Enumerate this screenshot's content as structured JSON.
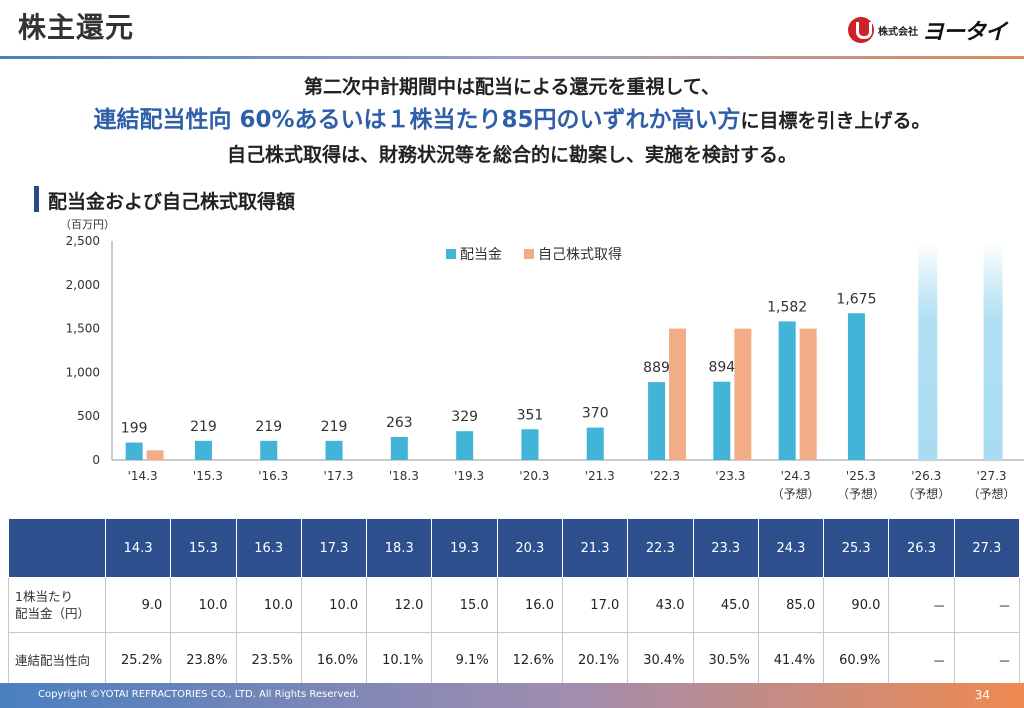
{
  "header": {
    "title": "株主還元",
    "logo_small": "株式会社",
    "logo_big": "ヨータイ"
  },
  "headline": {
    "line1": "第二次中計期間中は配当による還元を重視して、",
    "line2_emphasis": "連結配当性向 60%あるいは１株当たり85円のいずれか高い方",
    "line2_rest": "に目標を引き上げる。",
    "line3": "自己株式取得は、財務状況等を総合的に勘案し、実施を検討する。"
  },
  "section_title": "配当金および自己株式取得額",
  "chart_data": {
    "type": "bar",
    "unit_label": "（百万円）",
    "categories": [
      "'14.3",
      "'15.3",
      "'16.3",
      "'17.3",
      "'18.3",
      "'19.3",
      "'20.3",
      "'21.3",
      "'22.3",
      "'23.3",
      "'24.3",
      "'25.3",
      "'26.3",
      "'27.3"
    ],
    "sub_labels": [
      "",
      "",
      "",
      "",
      "",
      "",
      "",
      "",
      "",
      "",
      "（予想）",
      "（予想）",
      "（予想）",
      "（予想）"
    ],
    "series": [
      {
        "name": "配当金",
        "color": "#41b4d8",
        "values": [
          199,
          219,
          219,
          219,
          263,
          329,
          351,
          370,
          889,
          894,
          1582,
          1675,
          null,
          null
        ],
        "labels": [
          "199",
          "219",
          "219",
          "219",
          "263",
          "329",
          "351",
          "370",
          "889",
          "894",
          "1,582",
          "1,675",
          "",
          ""
        ]
      },
      {
        "name": "自己株式取得",
        "color": "#f2ad88",
        "values": [
          110,
          null,
          null,
          null,
          null,
          null,
          null,
          null,
          1500,
          1500,
          1500,
          null,
          null,
          null
        ]
      }
    ],
    "faded_bars": [
      {
        "category": "'26.3",
        "color": "#a8dcf2"
      },
      {
        "category": "'27.3",
        "color": "#a8dcf2"
      }
    ],
    "ylim": [
      0,
      2500
    ],
    "yticks": [
      0,
      500,
      1000,
      1500,
      2000,
      2500
    ],
    "ytick_labels": [
      "0",
      "500",
      "1,000",
      "1,500",
      "2,000",
      "2,500"
    ],
    "legend_position": "top-center"
  },
  "table": {
    "columns": [
      "14.3",
      "15.3",
      "16.3",
      "17.3",
      "18.3",
      "19.3",
      "20.3",
      "21.3",
      "22.3",
      "23.3",
      "24.3",
      "25.3",
      "26.3",
      "27.3"
    ],
    "rows": [
      {
        "label_line1": "1株当たり",
        "label_line2": "配当金（円）",
        "values": [
          "9.0",
          "10.0",
          "10.0",
          "10.0",
          "12.0",
          "15.0",
          "16.0",
          "17.0",
          "43.0",
          "45.0",
          "85.0",
          "90.0",
          "－",
          "－"
        ]
      },
      {
        "label_line1": "連結配当性向",
        "label_line2": "",
        "values": [
          "25.2%",
          "23.8%",
          "23.5%",
          "16.0%",
          "10.1%",
          "9.1%",
          "12.6%",
          "20.1%",
          "30.4%",
          "30.5%",
          "41.4%",
          "60.9%",
          "－",
          "－"
        ]
      }
    ]
  },
  "footer": {
    "copyright": "Copyright ©YOTAI REFRACTORIES CO., LTD. All Rights Reserved.",
    "page_number": "34"
  }
}
